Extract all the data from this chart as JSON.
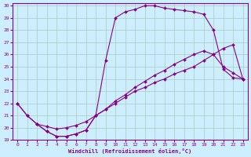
{
  "xlabel": "Windchill (Refroidissement éolien,°C)",
  "bg_color": "#cceeff",
  "line_color": "#880088",
  "grid_color": "#aaccbb",
  "xlim": [
    -0.5,
    23.5
  ],
  "ylim": [
    19,
    30.2
  ],
  "xticks": [
    0,
    1,
    2,
    3,
    4,
    5,
    6,
    7,
    8,
    9,
    10,
    11,
    12,
    13,
    14,
    15,
    16,
    17,
    18,
    19,
    20,
    21,
    22,
    23
  ],
  "yticks": [
    19,
    20,
    21,
    22,
    23,
    24,
    25,
    26,
    27,
    28,
    29,
    30
  ],
  "line1_x": [
    0,
    1,
    2,
    3,
    4,
    5,
    6,
    7,
    8,
    9,
    10,
    11,
    12,
    13,
    14,
    15,
    16,
    17,
    18,
    19,
    20,
    21,
    22,
    23
  ],
  "line1_y": [
    22.0,
    21.0,
    20.3,
    20.1,
    19.9,
    20.0,
    20.2,
    20.5,
    21.0,
    21.5,
    22.0,
    22.5,
    23.0,
    23.3,
    23.7,
    24.0,
    24.4,
    24.7,
    25.0,
    25.5,
    26.0,
    26.5,
    26.8,
    24.0
  ],
  "line2_x": [
    0,
    1,
    2,
    3,
    4,
    5,
    6,
    7,
    8,
    9,
    10,
    11,
    12,
    13,
    14,
    15,
    16,
    17,
    18,
    19,
    20,
    21,
    22,
    23
  ],
  "line2_y": [
    22.0,
    21.0,
    20.3,
    19.7,
    19.3,
    19.3,
    19.5,
    19.8,
    21.0,
    25.5,
    29.0,
    29.5,
    29.7,
    30.0,
    30.0,
    29.8,
    29.7,
    29.6,
    29.5,
    29.3,
    28.0,
    24.8,
    24.1,
    24.0
  ],
  "line3_x": [
    2,
    3,
    4,
    5,
    6,
    7,
    8,
    9,
    10,
    11,
    12,
    13,
    14,
    15,
    16,
    17,
    18,
    19,
    20,
    21,
    22,
    23
  ],
  "line3_y": [
    20.3,
    19.7,
    19.3,
    19.3,
    19.5,
    19.8,
    21.0,
    21.5,
    22.2,
    22.7,
    23.3,
    23.8,
    24.3,
    24.7,
    25.2,
    25.6,
    26.0,
    26.3,
    26.0,
    25.0,
    24.5,
    24.0
  ]
}
